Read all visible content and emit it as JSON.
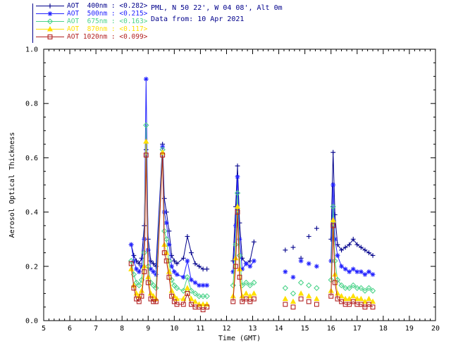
{
  "header": {
    "site_line": "PML, N 50 22', W 04 08', Alt 0m",
    "date_line": "Data from: 10 Apr 2021",
    "text_color": "#00008b"
  },
  "legend": {
    "items": [
      {
        "label": "AOT  400nm : <0.282>",
        "color": "#00008b",
        "symbol": "plus"
      },
      {
        "label": "AOT  500nm : <0.215>",
        "color": "#2222ff",
        "symbol": "asterisk"
      },
      {
        "label": "AOT  675nm : <0.163>",
        "color": "#4cd38a",
        "symbol": "diamond"
      },
      {
        "label": "AOT  870nm : <0.117>",
        "color": "#ffdf00",
        "symbol": "triangle"
      },
      {
        "label": "AOT 1020nm : <0.099>",
        "color": "#b22222",
        "symbol": "square"
      }
    ]
  },
  "chart_data": {
    "type": "line",
    "title": "",
    "xlabel": "Time (GMT)",
    "ylabel": "Aerosol Optical Thickness",
    "xlim": [
      5,
      20
    ],
    "ylim": [
      0.0,
      1.0
    ],
    "xticks": [
      5,
      6,
      7,
      8,
      9,
      10,
      11,
      12,
      13,
      14,
      15,
      16,
      17,
      18,
      19,
      20
    ],
    "xtick_labels": [
      "5",
      "6",
      "7",
      "8",
      "9",
      "10",
      "11",
      "12",
      "13",
      "14",
      "15",
      "16",
      "17",
      "18",
      "19",
      "20"
    ],
    "yticks": [
      0.0,
      0.2,
      0.4,
      0.6,
      0.8,
      1.0
    ],
    "ytick_labels": [
      "0.0",
      "0.2",
      "0.4",
      "0.6",
      "0.8",
      "1.0"
    ],
    "x_minor_step": 0.2,
    "y_minor_step": 0.05,
    "grid": false,
    "legend_position": "top-left-outside",
    "x": [
      8.35,
      8.45,
      8.55,
      8.65,
      8.75,
      8.85,
      8.92,
      9.0,
      9.1,
      9.2,
      9.3,
      9.55,
      9.62,
      9.7,
      9.8,
      9.9,
      10.0,
      10.1,
      10.35,
      10.5,
      10.65,
      10.8,
      10.95,
      11.1,
      11.25,
      12.25,
      12.35,
      12.42,
      12.5,
      12.6,
      12.75,
      12.9,
      13.05,
      14.25,
      14.55,
      14.85,
      15.15,
      15.45,
      16.0,
      16.08,
      16.15,
      16.25,
      16.4,
      16.55,
      16.7,
      16.85,
      17.0,
      17.15,
      17.3,
      17.45,
      17.6
    ],
    "series": [
      {
        "name": "AOT 400nm",
        "wavelength": "400nm",
        "mean_label": "<0.282>",
        "color": "#00008b",
        "symbol": "plus",
        "values": [
          0.28,
          0.24,
          0.22,
          0.21,
          0.23,
          0.35,
          0.63,
          0.3,
          0.22,
          0.21,
          0.2,
          0.65,
          0.45,
          0.4,
          0.33,
          0.24,
          0.22,
          0.21,
          0.23,
          0.31,
          0.25,
          0.21,
          0.2,
          0.19,
          0.19,
          0.22,
          0.42,
          0.57,
          0.36,
          0.23,
          0.21,
          0.22,
          0.29,
          0.26,
          0.27,
          0.23,
          0.31,
          0.34,
          0.3,
          0.62,
          0.39,
          0.28,
          0.26,
          0.27,
          0.28,
          0.3,
          0.28,
          0.27,
          0.26,
          0.25,
          0.24
        ]
      },
      {
        "name": "AOT 500nm",
        "wavelength": "500nm",
        "mean_label": "<0.215>",
        "color": "#2222ff",
        "symbol": "asterisk",
        "values": [
          0.28,
          0.22,
          0.19,
          0.18,
          0.2,
          0.3,
          0.89,
          0.26,
          0.19,
          0.18,
          0.17,
          0.64,
          0.4,
          0.36,
          0.28,
          0.2,
          0.18,
          0.17,
          0.16,
          0.22,
          0.15,
          0.14,
          0.13,
          0.13,
          0.13,
          0.18,
          0.35,
          0.53,
          0.3,
          0.19,
          0.21,
          0.2,
          0.22,
          0.18,
          0.16,
          0.22,
          0.21,
          0.2,
          0.22,
          0.5,
          0.3,
          0.24,
          0.2,
          0.19,
          0.18,
          0.19,
          0.18,
          0.18,
          0.17,
          0.18,
          0.17
        ]
      },
      {
        "name": "AOT 675nm",
        "wavelength": "675nm",
        "mean_label": "<0.163>",
        "color": "#4cd38a",
        "symbol": "diamond",
        "values": [
          0.22,
          0.17,
          0.14,
          0.13,
          0.15,
          0.25,
          0.72,
          0.2,
          0.14,
          0.13,
          0.12,
          0.63,
          0.33,
          0.3,
          0.22,
          0.15,
          0.13,
          0.12,
          0.11,
          0.16,
          0.11,
          0.1,
          0.09,
          0.09,
          0.09,
          0.13,
          0.28,
          0.47,
          0.24,
          0.13,
          0.14,
          0.13,
          0.14,
          0.12,
          0.1,
          0.14,
          0.13,
          0.12,
          0.15,
          0.42,
          0.22,
          0.15,
          0.13,
          0.12,
          0.12,
          0.13,
          0.12,
          0.12,
          0.11,
          0.12,
          0.11
        ]
      },
      {
        "name": "AOT 870nm",
        "wavelength": "870nm",
        "mean_label": "<0.117>",
        "color": "#ffdf00",
        "symbol": "triangle",
        "values": [
          0.19,
          0.13,
          0.1,
          0.09,
          0.11,
          0.2,
          0.66,
          0.16,
          0.1,
          0.09,
          0.08,
          0.62,
          0.28,
          0.25,
          0.18,
          0.11,
          0.09,
          0.08,
          0.08,
          0.12,
          0.08,
          0.07,
          0.06,
          0.06,
          0.06,
          0.09,
          0.23,
          0.42,
          0.19,
          0.09,
          0.1,
          0.09,
          0.1,
          0.08,
          0.07,
          0.1,
          0.09,
          0.08,
          0.11,
          0.37,
          0.17,
          0.1,
          0.09,
          0.08,
          0.08,
          0.09,
          0.08,
          0.08,
          0.07,
          0.08,
          0.07
        ]
      },
      {
        "name": "AOT 1020nm",
        "wavelength": "1020nm",
        "mean_label": "<0.099>",
        "color": "#b22222",
        "symbol": "square",
        "values": [
          0.21,
          0.12,
          0.08,
          0.07,
          0.09,
          0.18,
          0.61,
          0.14,
          0.08,
          0.07,
          0.07,
          0.61,
          0.25,
          0.22,
          0.16,
          0.09,
          0.07,
          0.06,
          0.06,
          0.1,
          0.06,
          0.05,
          0.05,
          0.04,
          0.05,
          0.07,
          0.2,
          0.4,
          0.16,
          0.07,
          0.08,
          0.07,
          0.08,
          0.06,
          0.05,
          0.08,
          0.07,
          0.06,
          0.09,
          0.35,
          0.14,
          0.08,
          0.07,
          0.06,
          0.06,
          0.07,
          0.06,
          0.06,
          0.05,
          0.06,
          0.05
        ]
      }
    ],
    "segment_break_gap_hours": 0.28
  }
}
